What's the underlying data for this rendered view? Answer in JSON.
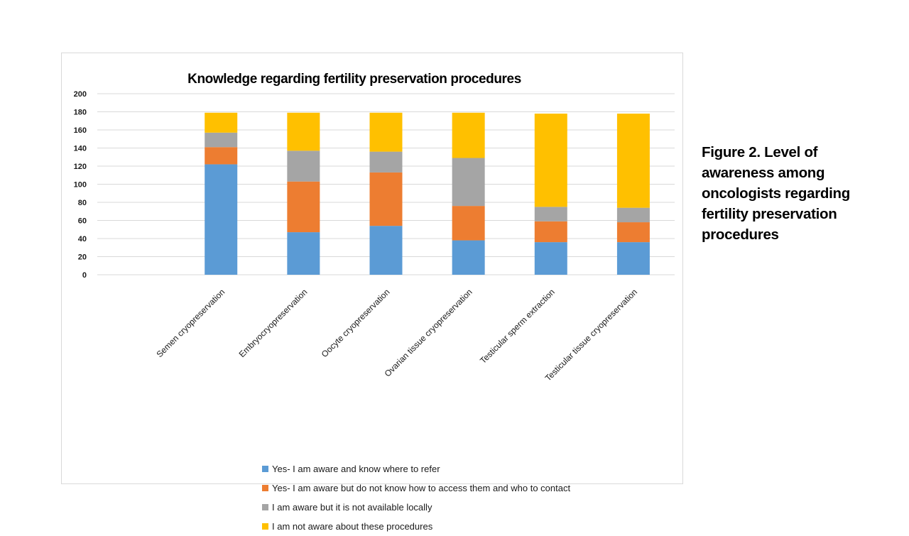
{
  "caption": "Figure 2. Level of awareness among oncologists regarding fertility preservation procedures",
  "chart_data": {
    "type": "bar",
    "stacked": true,
    "title": "Knowledge regarding fertility preservation procedures",
    "xlabel": "",
    "ylabel": "",
    "ylim": [
      0,
      200
    ],
    "yticks": [
      0,
      20,
      40,
      60,
      80,
      100,
      120,
      140,
      160,
      180,
      200
    ],
    "grid": true,
    "legend_position": "bottom",
    "categories": [
      "Semen cryopreservation",
      "Embryocryopreservation",
      "Oocyte cryopreservation",
      "Ovarian tissue cryopreservation",
      "Testicular sperm extraction",
      "Testicular tissue cryopreservation"
    ],
    "series": [
      {
        "name": "Yes- I am aware and know where to refer",
        "color": "#5b9bd5",
        "values": [
          122,
          47,
          54,
          38,
          36,
          36
        ]
      },
      {
        "name": "Yes- I am aware but do not know how to access them and who to contact",
        "color": "#ed7d31",
        "values": [
          19,
          56,
          59,
          38,
          23,
          22
        ]
      },
      {
        "name": "I am aware but it is not available locally",
        "color": "#a5a5a5",
        "values": [
          16,
          34,
          23,
          53,
          16,
          16
        ]
      },
      {
        "name": "I am not aware about these procedures",
        "color": "#ffc000",
        "values": [
          22,
          42,
          43,
          50,
          103,
          104
        ]
      }
    ]
  }
}
